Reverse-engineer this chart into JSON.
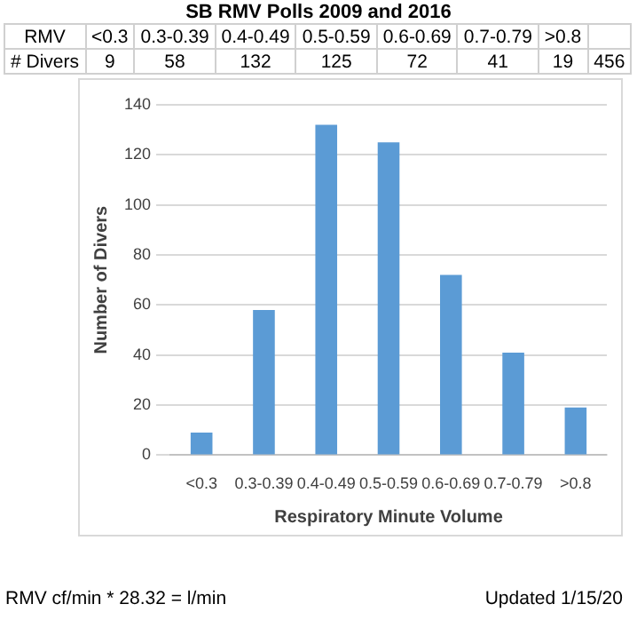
{
  "chart_data": {
    "type": "bar",
    "title": "SB RMV Polls 2009 and 2016",
    "xlabel": "Respiratory Minute Volume",
    "ylabel": "Number of Divers",
    "categories": [
      "<0.3",
      "0.3-0.39",
      "0.4-0.49",
      "0.5-0.59",
      "0.6-0.69",
      "0.7-0.79",
      ">0.8"
    ],
    "values": [
      9,
      58,
      132,
      125,
      72,
      41,
      19
    ],
    "color": "#5b9bd5",
    "ylim": [
      0,
      140
    ],
    "yticks": [
      0,
      20,
      40,
      60,
      80,
      100,
      120,
      140
    ],
    "grid": "y",
    "annotations": [
      "RMV",
      "# Divers",
      "9",
      "58",
      "132",
      "125",
      "72",
      "41",
      "19",
      "456",
      "RMV cf/min * 28.32 = l/min",
      "Updated 1/15/20"
    ]
  }
}
